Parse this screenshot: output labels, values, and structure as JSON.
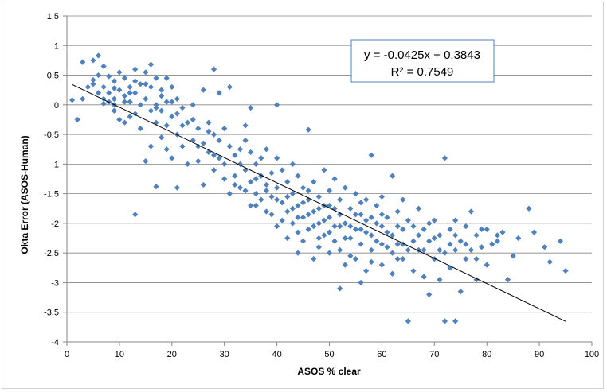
{
  "chart_data": {
    "type": "scatter",
    "xlabel": "ASOS % clear",
    "ylabel": "Okta Error (ASOS-Human)",
    "xlim": [
      0,
      100
    ],
    "ylim": [
      -4,
      1.5
    ],
    "x_ticks": [
      0,
      10,
      20,
      30,
      40,
      50,
      60,
      70,
      80,
      90,
      100
    ],
    "x_tick_labels": [
      "0",
      "10",
      "20",
      "30",
      "40",
      "50",
      "60",
      "70",
      "80",
      "90",
      "100"
    ],
    "y_ticks": [
      1.5,
      1,
      0.5,
      0,
      -0.5,
      -1,
      -1.5,
      -2,
      -2.5,
      -3,
      -3.5,
      -4
    ],
    "y_tick_labels": [
      "1.5",
      "1",
      "0.5",
      "0",
      "-0.5",
      "-1",
      "-1.5",
      "-2",
      "-2.5",
      "-3",
      "-3.5",
      "-4"
    ],
    "grid": "horizontal",
    "marker_color": "#4f81bd",
    "trendline": {
      "slope": -0.0425,
      "intercept": 0.3843,
      "x_range": [
        1,
        95
      ],
      "color": "#000000"
    },
    "annotation": {
      "equation": "y = -0.0425x + 0.3843",
      "r_squared": "R² = 0.7549"
    },
    "series": [
      {
        "points": [
          [
            1,
            0.08
          ],
          [
            2,
            -0.25
          ],
          [
            3,
            0.72
          ],
          [
            3,
            0.1
          ],
          [
            4,
            0.3
          ],
          [
            5,
            0.75
          ],
          [
            5,
            0.42
          ],
          [
            6,
            0.83
          ],
          [
            6,
            0.5
          ],
          [
            6,
            0.2
          ],
          [
            7,
            0.65
          ],
          [
            7,
            0.3
          ],
          [
            7,
            0.02
          ],
          [
            8,
            0.48
          ],
          [
            8,
            0.2
          ],
          [
            8,
            0.05
          ],
          [
            9,
            0.4
          ],
          [
            9,
            0.1
          ],
          [
            9,
            -0.1
          ],
          [
            10,
            0.55
          ],
          [
            10,
            0.25
          ],
          [
            10,
            -0.25
          ],
          [
            11,
            0.45
          ],
          [
            11,
            0.15
          ],
          [
            11,
            -0.3
          ],
          [
            12,
            0.3
          ],
          [
            12,
            0.05
          ],
          [
            12,
            -0.2
          ],
          [
            13,
            0.6
          ],
          [
            13,
            0.2
          ],
          [
            13,
            -0.15
          ],
          [
            13,
            -1.85
          ],
          [
            14,
            0.35
          ],
          [
            14,
            0.0
          ],
          [
            14,
            -0.4
          ],
          [
            15,
            0.55
          ],
          [
            15,
            0.1
          ],
          [
            15,
            -0.95
          ],
          [
            16,
            0.68
          ],
          [
            16,
            0.3
          ],
          [
            16,
            -0.1
          ],
          [
            16,
            -0.7
          ],
          [
            17,
            0.45
          ],
          [
            17,
            0.0
          ],
          [
            17,
            -0.3
          ],
          [
            17,
            -1.38
          ],
          [
            18,
            0.25
          ],
          [
            18,
            -0.1
          ],
          [
            18,
            -0.55
          ],
          [
            19,
            0.45
          ],
          [
            19,
            0.05
          ],
          [
            19,
            -0.75
          ],
          [
            20,
            0.3
          ],
          [
            20,
            -0.2
          ],
          [
            20,
            -0.9
          ],
          [
            21,
            0.1
          ],
          [
            21,
            -0.5
          ],
          [
            21,
            -1.4
          ],
          [
            22,
            -0.05
          ],
          [
            22,
            -0.7
          ],
          [
            23,
            -0.3
          ],
          [
            23,
            -1.0
          ],
          [
            24,
            0.0
          ],
          [
            24,
            -0.6
          ],
          [
            25,
            -0.4
          ],
          [
            25,
            -0.95
          ],
          [
            26,
            0.25
          ],
          [
            26,
            -0.65
          ],
          [
            26,
            -1.35
          ],
          [
            27,
            -0.8
          ],
          [
            27,
            -0.3
          ],
          [
            28,
            0.6
          ],
          [
            28,
            -0.5
          ],
          [
            28,
            -1.1
          ],
          [
            29,
            0.2
          ],
          [
            29,
            -0.9
          ],
          [
            30,
            -0.4
          ],
          [
            30,
            -1.25
          ],
          [
            31,
            0.3
          ],
          [
            31,
            -0.7
          ],
          [
            31,
            -1.5
          ],
          [
            32,
            -0.85
          ],
          [
            32,
            -1.2
          ],
          [
            33,
            -1.0
          ],
          [
            33,
            -1.4
          ],
          [
            34,
            -0.6
          ],
          [
            34,
            -1.1
          ],
          [
            35,
            -0.05
          ],
          [
            35,
            -0.8
          ],
          [
            35,
            -1.3
          ],
          [
            35,
            -1.7
          ],
          [
            36,
            -1.0
          ],
          [
            36,
            -1.5
          ],
          [
            37,
            -1.2
          ],
          [
            37,
            -1.6
          ],
          [
            38,
            -0.75
          ],
          [
            38,
            -1.35
          ],
          [
            38,
            -1.8
          ],
          [
            39,
            -1.15
          ],
          [
            39,
            -1.55
          ],
          [
            40,
            0.0
          ],
          [
            40,
            -0.9
          ],
          [
            40,
            -1.4
          ],
          [
            40,
            -2.05
          ],
          [
            41,
            -1.1
          ],
          [
            41,
            -1.65
          ],
          [
            42,
            -1.3
          ],
          [
            42,
            -1.8
          ],
          [
            42,
            -2.25
          ],
          [
            43,
            -1.0
          ],
          [
            43,
            -1.5
          ],
          [
            43,
            -2.0
          ],
          [
            44,
            -1.2
          ],
          [
            44,
            -1.7
          ],
          [
            44,
            -2.5
          ],
          [
            45,
            -1.4
          ],
          [
            45,
            -1.9
          ],
          [
            45,
            -2.3
          ],
          [
            46,
            -0.42
          ],
          [
            46,
            -1.6
          ],
          [
            46,
            -2.1
          ],
          [
            47,
            -1.3
          ],
          [
            47,
            -1.8
          ],
          [
            47,
            -2.6
          ],
          [
            48,
            -1.55
          ],
          [
            48,
            -2.0
          ],
          [
            48,
            -2.4
          ],
          [
            49,
            -1.1
          ],
          [
            49,
            -1.7
          ],
          [
            49,
            -2.2
          ],
          [
            50,
            -1.45
          ],
          [
            50,
            -1.9
          ],
          [
            50,
            -2.5
          ],
          [
            51,
            -1.25
          ],
          [
            51,
            -1.75
          ],
          [
            51,
            -2.3
          ],
          [
            52,
            -1.6
          ],
          [
            52,
            -2.05
          ],
          [
            52,
            -3.1
          ],
          [
            53,
            -1.4
          ],
          [
            53,
            -2.0
          ],
          [
            53,
            -2.7
          ],
          [
            54,
            -1.75
          ],
          [
            54,
            -2.25
          ],
          [
            55,
            -1.5
          ],
          [
            55,
            -2.1
          ],
          [
            55,
            -2.6
          ],
          [
            56,
            -1.85
          ],
          [
            56,
            -2.35
          ],
          [
            56,
            -3.0
          ],
          [
            57,
            -1.6
          ],
          [
            57,
            -2.15
          ],
          [
            57,
            -2.8
          ],
          [
            58,
            -0.85
          ],
          [
            58,
            -1.9
          ],
          [
            58,
            -2.45
          ],
          [
            59,
            -1.7
          ],
          [
            59,
            -2.3
          ],
          [
            60,
            -1.55
          ],
          [
            60,
            -2.05
          ],
          [
            60,
            -2.7
          ],
          [
            61,
            -1.9
          ],
          [
            61,
            -2.4
          ],
          [
            62,
            -1.2
          ],
          [
            62,
            -2.2
          ],
          [
            62,
            -2.85
          ],
          [
            63,
            -1.8
          ],
          [
            63,
            -2.35
          ],
          [
            64,
            -1.6
          ],
          [
            64,
            -2.1
          ],
          [
            64,
            -2.6
          ],
          [
            65,
            -1.95
          ],
          [
            65,
            -3.65
          ],
          [
            66,
            -2.3
          ],
          [
            66,
            -2.8
          ],
          [
            67,
            -1.75
          ],
          [
            67,
            -2.45
          ],
          [
            68,
            -2.1
          ],
          [
            68,
            -2.9
          ],
          [
            69,
            -2.3
          ],
          [
            69,
            -3.2
          ],
          [
            70,
            -1.95
          ],
          [
            70,
            -2.6
          ],
          [
            71,
            -2.2
          ],
          [
            71,
            -2.95
          ],
          [
            72,
            -0.9
          ],
          [
            72,
            -2.5
          ],
          [
            72,
            -3.65
          ],
          [
            73,
            -2.1
          ],
          [
            73,
            -2.75
          ],
          [
            74,
            -1.95
          ],
          [
            74,
            -2.45
          ],
          [
            74,
            -3.65
          ],
          [
            75,
            -2.3
          ],
          [
            75,
            -3.15
          ],
          [
            76,
            -2.05
          ],
          [
            76,
            -2.6
          ],
          [
            77,
            -1.8
          ],
          [
            77,
            -2.45
          ],
          [
            78,
            -2.2
          ],
          [
            78,
            -2.95
          ],
          [
            79,
            -2.4
          ],
          [
            80,
            -2.1
          ],
          [
            80,
            -2.7
          ],
          [
            81,
            -2.35
          ],
          [
            82,
            -2.2
          ],
          [
            83,
            -2.15
          ],
          [
            84,
            -2.95
          ],
          [
            85,
            -2.55
          ],
          [
            86,
            -2.25
          ],
          [
            88,
            -1.75
          ],
          [
            89,
            -2.15
          ],
          [
            91,
            -2.4
          ],
          [
            92,
            -2.65
          ],
          [
            94,
            -2.3
          ],
          [
            95,
            -2.8
          ],
          [
            5,
            0.35
          ],
          [
            7,
            0.1
          ],
          [
            9,
            0.28
          ],
          [
            11,
            0.05
          ],
          [
            13,
            0.4
          ],
          [
            15,
            0.35
          ],
          [
            18,
            0.15
          ],
          [
            20,
            0.05
          ],
          [
            22,
            -0.35
          ],
          [
            24,
            -0.25
          ],
          [
            27,
            -0.45
          ],
          [
            29,
            -0.6
          ],
          [
            33,
            -0.75
          ],
          [
            34,
            -0.35
          ],
          [
            36,
            -1.25
          ],
          [
            37,
            -0.9
          ],
          [
            39,
            -1.85
          ],
          [
            41,
            -1.95
          ],
          [
            43,
            -1.75
          ],
          [
            44,
            -2.15
          ],
          [
            45,
            -1.65
          ],
          [
            46,
            -1.85
          ],
          [
            47,
            -2.05
          ],
          [
            48,
            -1.75
          ],
          [
            49,
            -1.95
          ],
          [
            50,
            -2.15
          ],
          [
            51,
            -2.05
          ],
          [
            52,
            -1.85
          ],
          [
            53,
            -2.25
          ],
          [
            54,
            -2.05
          ],
          [
            55,
            -1.85
          ],
          [
            56,
            -2.1
          ],
          [
            57,
            -1.95
          ],
          [
            58,
            -2.2
          ],
          [
            59,
            -2.0
          ],
          [
            60,
            -2.35
          ],
          [
            61,
            -2.15
          ],
          [
            62,
            -2.5
          ],
          [
            63,
            -2.05
          ],
          [
            64,
            -2.35
          ],
          [
            66,
            -2.05
          ],
          [
            67,
            -2.2
          ],
          [
            68,
            -2.45
          ],
          [
            70,
            -2.25
          ],
          [
            71,
            -2.45
          ],
          [
            73,
            -2.35
          ],
          [
            76,
            -2.35
          ],
          [
            79,
            -2.1
          ],
          [
            82,
            -2.3
          ],
          [
            9,
            0.0
          ],
          [
            12,
            0.2
          ],
          [
            17,
            -0.05
          ],
          [
            19,
            -0.35
          ],
          [
            21,
            -0.15
          ],
          [
            25,
            -0.7
          ],
          [
            28,
            -0.85
          ],
          [
            30,
            -1.0
          ],
          [
            32,
            -1.35
          ],
          [
            34,
            -1.45
          ],
          [
            36,
            -1.7
          ],
          [
            38,
            -1.45
          ],
          [
            40,
            -1.6
          ],
          [
            42,
            -1.55
          ],
          [
            44,
            -1.9
          ],
          [
            46,
            -1.45
          ],
          [
            48,
            -2.25
          ],
          [
            50,
            -1.7
          ],
          [
            52,
            -2.45
          ],
          [
            54,
            -2.55
          ],
          [
            56,
            -1.65
          ],
          [
            58,
            -2.65
          ],
          [
            60,
            -1.85
          ],
          [
            63,
            -2.6
          ],
          [
            65,
            -2.45
          ],
          [
            69,
            -2.0
          ],
          [
            74,
            -2.2
          ],
          [
            78,
            -2.6
          ]
        ]
      }
    ]
  }
}
